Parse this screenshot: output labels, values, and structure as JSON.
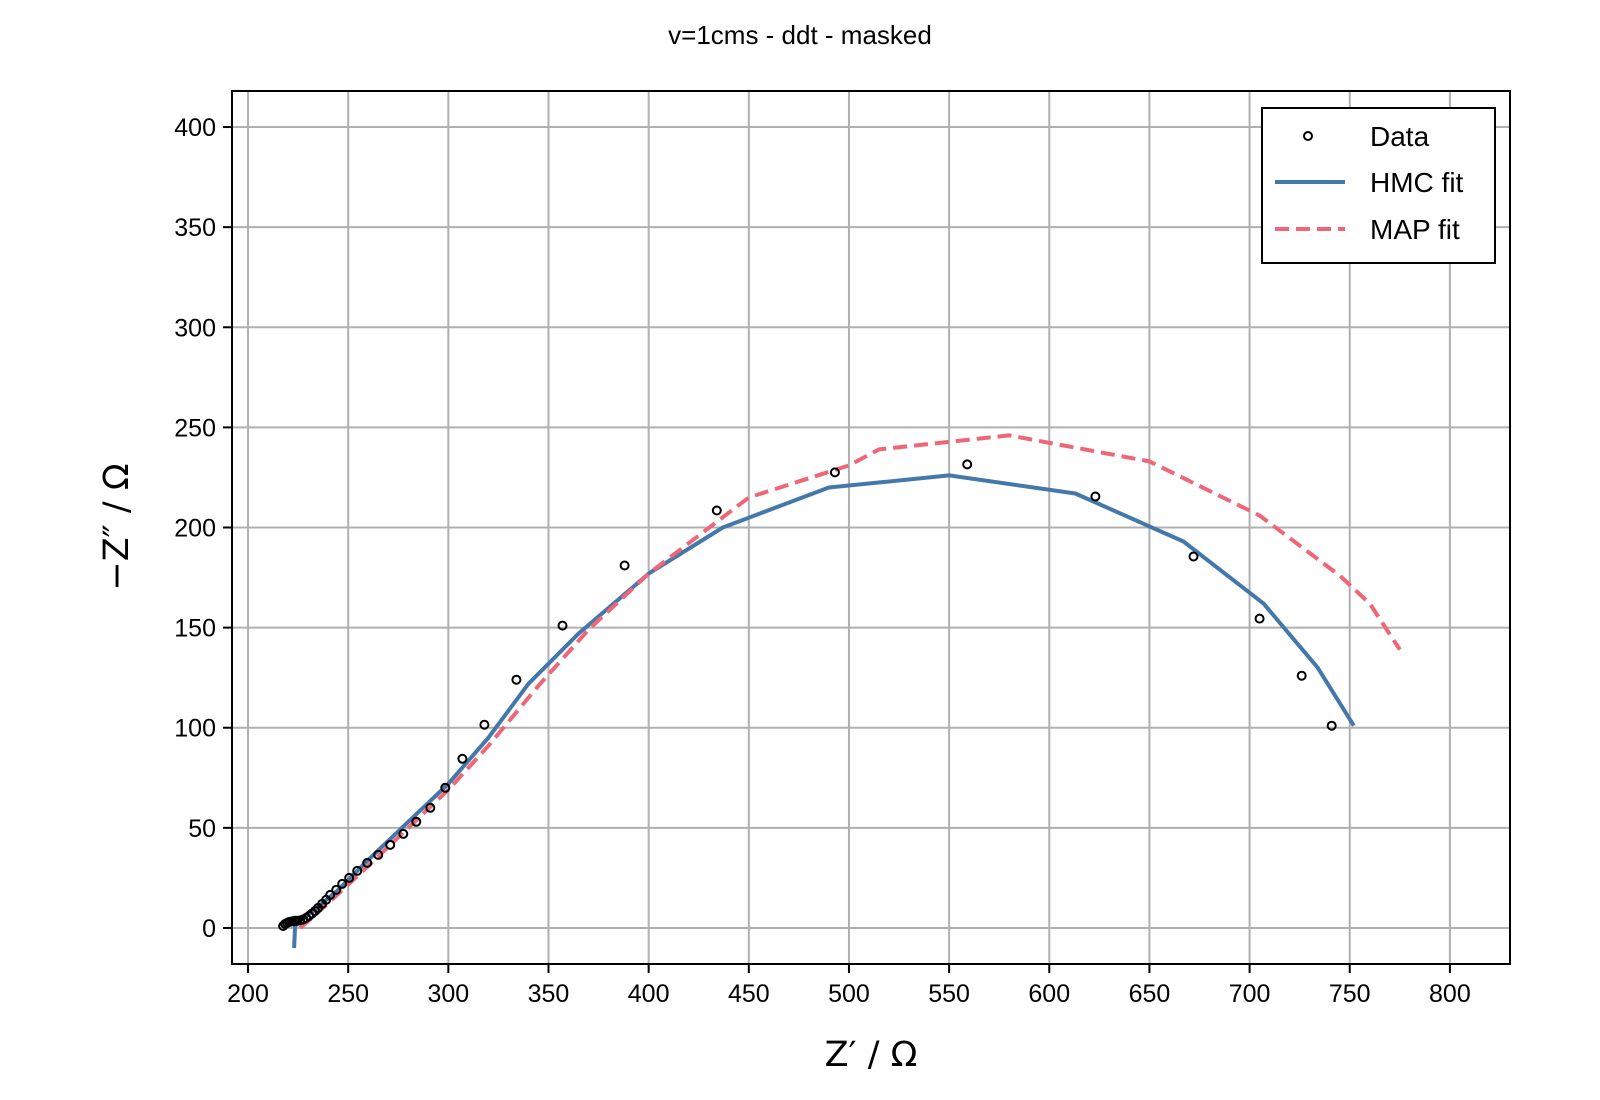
{
  "chart_data": {
    "type": "scatter",
    "title": "v=1cms - ddt - masked",
    "xlabel": "Z′ / Ω",
    "ylabel": "−Z″ / Ω",
    "xlim": [
      192,
      830
    ],
    "ylim": [
      -18,
      418
    ],
    "xticks": [
      200,
      250,
      300,
      350,
      400,
      450,
      500,
      550,
      600,
      650,
      700,
      750,
      800
    ],
    "yticks": [
      0,
      50,
      100,
      150,
      200,
      250,
      300,
      350,
      400
    ],
    "grid": true,
    "legend_position": "top-right",
    "series": [
      {
        "name": "Data",
        "kind": "scatter",
        "color": "#000000",
        "points": [
          [
            217.5,
            1.0
          ],
          [
            218.5,
            2.0
          ],
          [
            219.5,
            2.5
          ],
          [
            220.5,
            3.0
          ],
          [
            221.5,
            3.2
          ],
          [
            222.5,
            3.4
          ],
          [
            223.5,
            3.6
          ],
          [
            224.5,
            3.6
          ],
          [
            226,
            3.8
          ],
          [
            227.5,
            4.2
          ],
          [
            229,
            5.0
          ],
          [
            230.5,
            6.0
          ],
          [
            232,
            7.2
          ],
          [
            233.5,
            8.5
          ],
          [
            235,
            10.0
          ],
          [
            237,
            12.0
          ],
          [
            239,
            14.0
          ],
          [
            241,
            16.5
          ],
          [
            244,
            19.0
          ],
          [
            247,
            22.0
          ],
          [
            250.5,
            25.0
          ],
          [
            254.5,
            28.5
          ],
          [
            259.5,
            32.5
          ],
          [
            265,
            36.5
          ],
          [
            271,
            41.5
          ],
          [
            277.5,
            47.0
          ],
          [
            284,
            53.0
          ],
          [
            291,
            60.0
          ],
          [
            298.5,
            70.0
          ],
          [
            307,
            84.5
          ],
          [
            318,
            101.5
          ],
          [
            334,
            124.0
          ],
          [
            357,
            151.0
          ],
          [
            388,
            181.0
          ],
          [
            434,
            208.5
          ],
          [
            493,
            227.5
          ],
          [
            559,
            231.5
          ],
          [
            623,
            215.5
          ],
          [
            672,
            185.5
          ],
          [
            705,
            154.5
          ],
          [
            726,
            126.0
          ],
          [
            741,
            101.0
          ]
        ]
      },
      {
        "name": "HMC fit",
        "kind": "line",
        "color": "#4477aa",
        "points": [
          [
            223,
            -10
          ],
          [
            223.5,
            1
          ],
          [
            226,
            3.5
          ],
          [
            232,
            8
          ],
          [
            245,
            19
          ],
          [
            260,
            34
          ],
          [
            280,
            53
          ],
          [
            300,
            72
          ],
          [
            320,
            95
          ],
          [
            340,
            122
          ],
          [
            365,
            147
          ],
          [
            400,
            177
          ],
          [
            437,
            200
          ],
          [
            490,
            220
          ],
          [
            550,
            226
          ],
          [
            613,
            217
          ],
          [
            667,
            193
          ],
          [
            707,
            162
          ],
          [
            734,
            130
          ],
          [
            752,
            101
          ]
        ]
      },
      {
        "name": "MAP fit",
        "kind": "dashed",
        "color": "#ee6677",
        "points": [
          [
            226,
            0
          ],
          [
            232,
            5
          ],
          [
            245,
            17
          ],
          [
            260,
            31
          ],
          [
            280,
            50
          ],
          [
            300,
            69
          ],
          [
            320,
            91
          ],
          [
            345,
            121
          ],
          [
            370,
            149
          ],
          [
            400,
            177
          ],
          [
            450,
            215
          ],
          [
            500,
            231
          ],
          [
            515,
            239
          ],
          [
            580,
            246
          ],
          [
            650,
            233
          ],
          [
            705,
            206
          ],
          [
            745,
            176
          ],
          [
            760,
            162
          ],
          [
            775,
            139
          ]
        ]
      }
    ]
  }
}
